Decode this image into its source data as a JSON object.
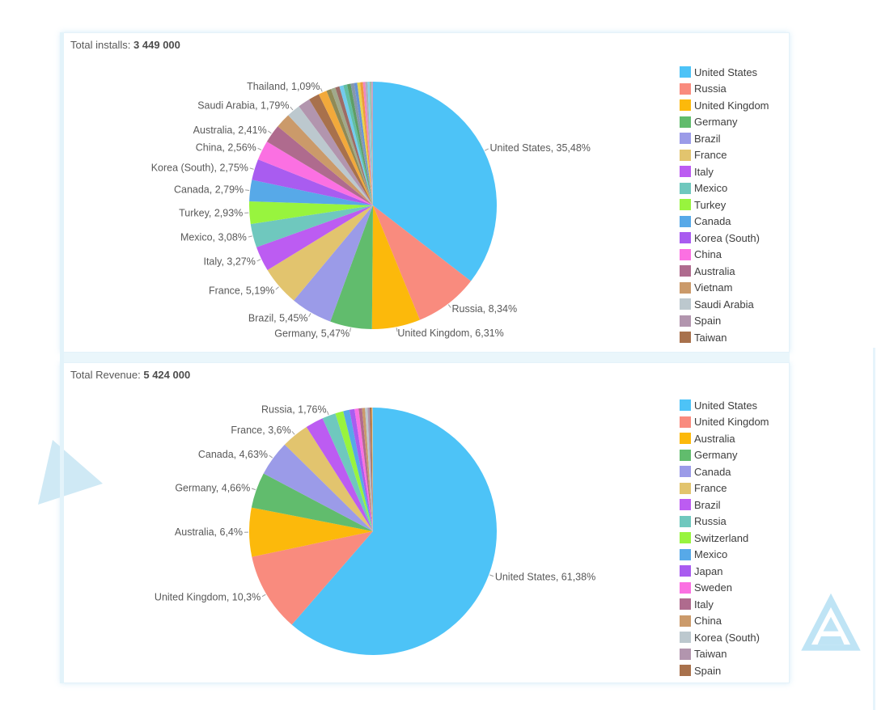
{
  "cards": [
    {
      "title_label": "Total installs:",
      "title_value": "3 449 000"
    },
    {
      "title_label": "Total Revenue:",
      "title_value": "5 424 000"
    }
  ],
  "chart_data": [
    {
      "type": "pie",
      "title": "Total installs: 3 449 000",
      "total_value": "3 449 000",
      "start_angle": "top (12 o'clock), clockwise, slices in descending order",
      "legend_position": "right",
      "legend_count": 17,
      "value_unit": "percent (comma decimal separator)",
      "slices": [
        {
          "name": "United States",
          "value": 35.48,
          "color": "#4dc3f7",
          "label": "United States, 35,48%"
        },
        {
          "name": "Russia",
          "value": 8.34,
          "color": "#f98b7e",
          "label": "Russia, 8,34%"
        },
        {
          "name": "United Kingdom",
          "value": 6.31,
          "color": "#fcb90b",
          "label": "United Kingdom, 6,31%"
        },
        {
          "name": "Germany",
          "value": 5.47,
          "color": "#61bc6d",
          "label": "Germany, 5,47%"
        },
        {
          "name": "Brazil",
          "value": 5.45,
          "color": "#9b9be8",
          "label": "Brazil, 5,45%"
        },
        {
          "name": "France",
          "value": 5.19,
          "color": "#e2c46e",
          "label": "France, 5,19%"
        },
        {
          "name": "Italy",
          "value": 3.27,
          "color": "#bc5cf2",
          "label": "Italy, 3,27%"
        },
        {
          "name": "Mexico",
          "value": 3.08,
          "color": "#6fc8be",
          "label": "Mexico, 3,08%"
        },
        {
          "name": "Turkey",
          "value": 2.93,
          "color": "#98f43e",
          "label": "Turkey, 2,93%"
        },
        {
          "name": "Canada",
          "value": 2.79,
          "color": "#57a9e8",
          "label": "Canada, 2,79%"
        },
        {
          "name": "Korea (South)",
          "value": 2.75,
          "color": "#a95cf0",
          "label": "Korea (South), 2,75%"
        },
        {
          "name": "China",
          "value": 2.56,
          "color": "#fb70e2",
          "label": "China, 2,56%"
        },
        {
          "name": "Australia",
          "value": 2.41,
          "color": "#af6b8e",
          "label": "Australia, 2,41%"
        },
        {
          "name": "Vietnam",
          "value": 1.96,
          "color": "#cb9a6a",
          "label": null
        },
        {
          "name": "Saudi Arabia",
          "value": 1.79,
          "color": "#bcc8ce",
          "label": "Saudi Arabia, 1,79%"
        },
        {
          "name": "Spain",
          "value": 1.6,
          "color": "#b295ae",
          "label": null
        },
        {
          "name": "Taiwan",
          "value": 1.4,
          "color": "#a8714c",
          "label": null
        },
        {
          "name": "Thailand",
          "value": 1.09,
          "color": "#f2a93b",
          "label": "Thailand, 1,09%"
        },
        {
          "name": "",
          "value": 0.62,
          "color": "#8f8a56",
          "label": null
        },
        {
          "name": "",
          "value": 0.58,
          "color": "#a0a98b",
          "label": null
        },
        {
          "name": "",
          "value": 0.55,
          "color": "#9d6b66",
          "label": null
        },
        {
          "name": "",
          "value": 0.52,
          "color": "#73cbee",
          "label": null
        },
        {
          "name": "",
          "value": 0.5,
          "color": "#62bfa4",
          "label": null
        },
        {
          "name": "",
          "value": 0.47,
          "color": "#5e9e66",
          "label": null
        },
        {
          "name": "",
          "value": 0.44,
          "color": "#8798ab",
          "label": null
        },
        {
          "name": "",
          "value": 0.41,
          "color": "#6794d6",
          "label": null
        },
        {
          "name": "",
          "value": 0.38,
          "color": "#e8d44d",
          "label": null
        },
        {
          "name": "",
          "value": 0.35,
          "color": "#ef9a3c",
          "label": null
        },
        {
          "name": "",
          "value": 0.32,
          "color": "#ef86c2",
          "label": null
        },
        {
          "name": "",
          "value": 0.29,
          "color": "#abb2b8",
          "label": null
        },
        {
          "name": "",
          "value": 0.26,
          "color": "#86d3ef",
          "label": null
        },
        {
          "name": "",
          "value": 0.23,
          "color": "#9fbda5",
          "label": null
        },
        {
          "name": "",
          "value": 0.21,
          "color": "#c7a3c5",
          "label": null
        }
      ]
    },
    {
      "type": "pie",
      "title": "Total Revenue: 5 424 000",
      "total_value": "5 424 000",
      "start_angle": "top (12 o'clock), clockwise, slices in descending order",
      "legend_position": "right",
      "legend_count": 17,
      "value_unit": "percent (comma decimal separator)",
      "slices": [
        {
          "name": "United States",
          "value": 61.38,
          "color": "#4dc3f7",
          "label": "United States, 61,38%"
        },
        {
          "name": "United Kingdom",
          "value": 10.3,
          "color": "#f98b7e",
          "label": "United Kingdom, 10,3%"
        },
        {
          "name": "Australia",
          "value": 6.4,
          "color": "#fcb90b",
          "label": "Australia, 6,4%"
        },
        {
          "name": "Germany",
          "value": 4.66,
          "color": "#61bc6d",
          "label": "Germany, 4,66%"
        },
        {
          "name": "Canada",
          "value": 4.63,
          "color": "#9b9be8",
          "label": "Canada, 4,63%"
        },
        {
          "name": "France",
          "value": 3.6,
          "color": "#e2c46e",
          "label": "France, 3,6%"
        },
        {
          "name": "Brazil",
          "value": 2.35,
          "color": "#bc5cf2",
          "label": null
        },
        {
          "name": "Russia",
          "value": 1.76,
          "color": "#6fc8be",
          "label": "Russia, 1,76%"
        },
        {
          "name": "Switzerland",
          "value": 1.05,
          "color": "#98f43e",
          "label": null
        },
        {
          "name": "Mexico",
          "value": 0.82,
          "color": "#57a9e8",
          "label": null
        },
        {
          "name": "Japan",
          "value": 0.66,
          "color": "#a95cf0",
          "label": null
        },
        {
          "name": "Sweden",
          "value": 0.54,
          "color": "#fb70e2",
          "label": null
        },
        {
          "name": "Italy",
          "value": 0.44,
          "color": "#af6b8e",
          "label": null
        },
        {
          "name": "China",
          "value": 0.38,
          "color": "#cb9a6a",
          "label": null
        },
        {
          "name": "Korea (South)",
          "value": 0.33,
          "color": "#bcc8ce",
          "label": null
        },
        {
          "name": "Taiwan",
          "value": 0.28,
          "color": "#b295ae",
          "label": null
        },
        {
          "name": "Spain",
          "value": 0.24,
          "color": "#a8714c",
          "label": null
        },
        {
          "name": "",
          "value": 0.08,
          "color": "#f2a93b",
          "label": null
        },
        {
          "name": "",
          "value": 0.05,
          "color": "#abb2b8",
          "label": null
        },
        {
          "name": "",
          "value": 0.03,
          "color": "#86d3ef",
          "label": null
        },
        {
          "name": "",
          "value": 0.02,
          "color": "#9fbda5",
          "label": null
        }
      ]
    }
  ],
  "decorations": {
    "left_triangle_color": "#cfe9f5",
    "logo_triangle_color": "#bfe4f5",
    "stripe_color": "#e3f3fa"
  }
}
